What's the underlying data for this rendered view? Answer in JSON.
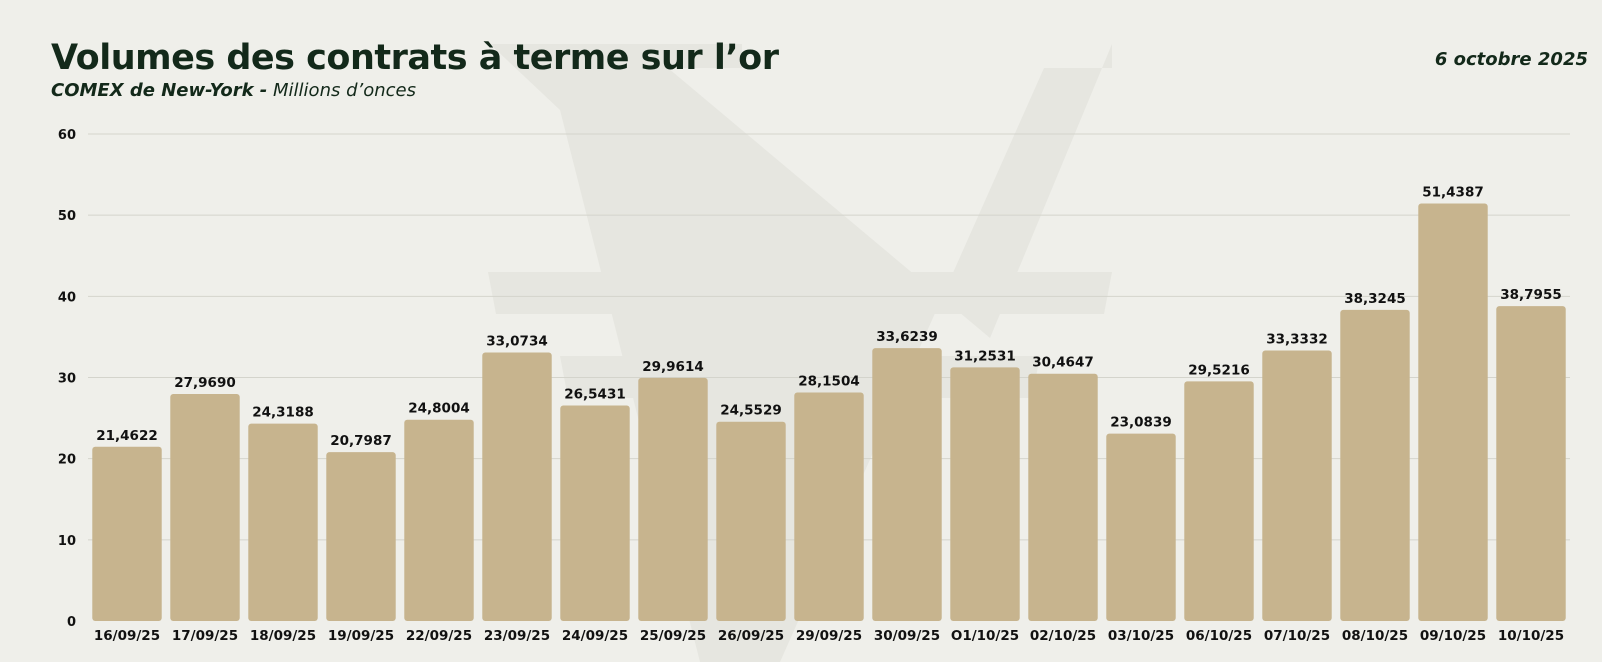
{
  "header": {
    "title": "Volumes des contrats à terme sur l’or",
    "subtitle_bold": "COMEX de New-York -",
    "subtitle_rest": "Millions d’onces",
    "date": "6 octobre 2025"
  },
  "colors": {
    "bar": "#c7b48e",
    "text": "#13291a",
    "background": "#efefea"
  },
  "chart_data": {
    "type": "bar",
    "title": "Volumes des contrats à terme sur l’or",
    "subtitle": "COMEX de New-York - Millions d’onces",
    "categories": [
      "16/09/25",
      "17/09/25",
      "18/09/25",
      "19/09/25",
      "22/09/25",
      "23/09/25",
      "24/09/25",
      "25/09/25",
      "26/09/25",
      "29/09/25",
      "30/09/25",
      "O1/10/25",
      "02/10/25",
      "03/10/25",
      "06/10/25",
      "07/10/25",
      "08/10/25",
      "09/10/25",
      "10/10/25"
    ],
    "values": [
      21.4622,
      27.969,
      24.3188,
      20.7987,
      24.8004,
      33.0734,
      26.5431,
      29.9614,
      24.5529,
      28.1504,
      33.6239,
      31.2531,
      30.4647,
      23.0839,
      29.5216,
      33.3332,
      38.3245,
      51.4387,
      38.7955
    ],
    "value_labels": [
      "21,4622",
      "27,9690",
      "24,3188",
      "20,7987",
      "24,8004",
      "33,0734",
      "26,5431",
      "29,9614",
      "24,5529",
      "28,1504",
      "33,6239",
      "31,2531",
      "30,4647",
      "23,0839",
      "29,5216",
      "33,3332",
      "38,3245",
      "51,4387",
      "38,7955"
    ],
    "yticks": [
      "0",
      "10",
      "20",
      "30",
      "40",
      "50",
      "60"
    ],
    "ylim": [
      0,
      60
    ],
    "grid": true,
    "legend": "none"
  }
}
